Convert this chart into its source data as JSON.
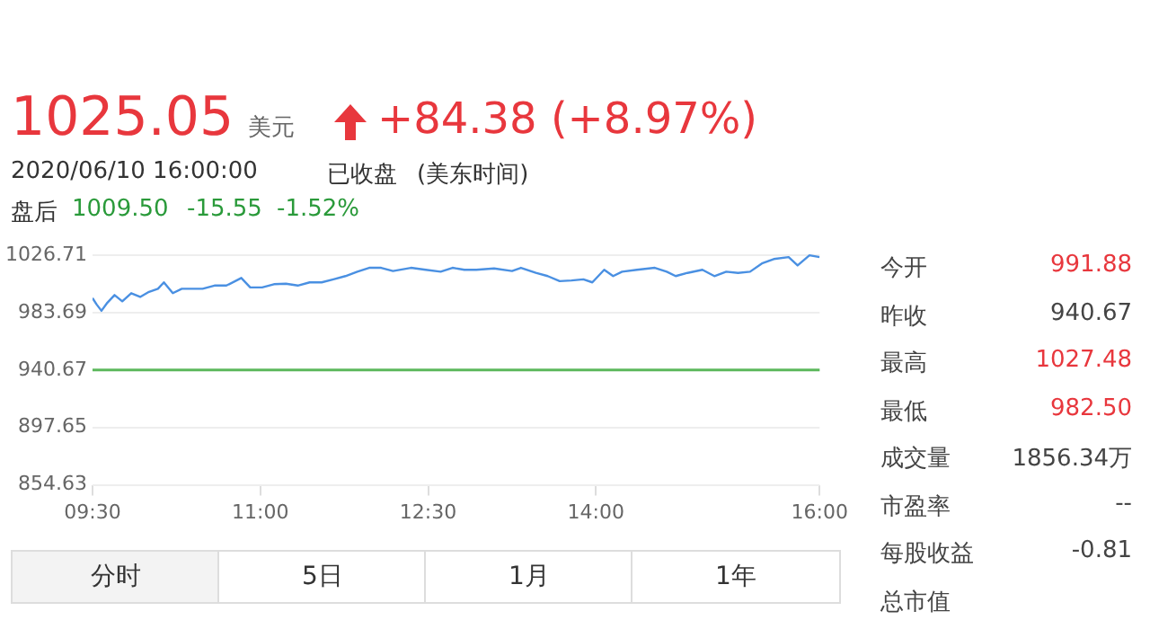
{
  "chart_data": {
    "type": "line",
    "x": [
      9.5,
      9.537,
      9.58,
      9.633,
      9.697,
      9.766,
      9.846,
      9.926,
      10.005,
      10.085,
      10.138,
      10.218,
      10.298,
      10.378,
      10.484,
      10.59,
      10.697,
      10.83,
      10.91,
      11.016,
      11.122,
      11.229,
      11.335,
      11.441,
      11.548,
      11.654,
      11.761,
      11.867,
      11.973,
      12.08,
      12.186,
      12.346,
      12.479,
      12.612,
      12.718,
      12.824,
      12.931,
      13.09,
      13.25,
      13.33,
      13.463,
      13.569,
      13.676,
      13.782,
      13.888,
      13.968,
      14.074,
      14.154,
      14.234,
      14.367,
      14.527,
      14.633,
      14.713,
      14.819,
      14.952,
      15.059,
      15.165,
      15.271,
      15.378,
      15.484,
      15.59,
      15.723,
      15.803,
      15.909,
      16.0
    ],
    "series": [
      {
        "color": "#4a90e2",
        "values": [
          994.6,
          989.8,
          985.1,
          991.2,
          996.9,
          992.2,
          998.3,
          995.5,
          999.3,
          1001.6,
          1006.4,
          998.3,
          1001.6,
          1001.6,
          1001.6,
          1004.0,
          1004.0,
          1009.7,
          1002.6,
          1002.6,
          1005.0,
          1005.4,
          1004.0,
          1006.4,
          1006.4,
          1008.7,
          1011.1,
          1014.4,
          1017.3,
          1017.3,
          1014.9,
          1017.3,
          1015.8,
          1014.4,
          1017.3,
          1015.8,
          1015.8,
          1016.8,
          1014.9,
          1017.3,
          1013.5,
          1011.1,
          1007.3,
          1007.8,
          1008.7,
          1006.4,
          1015.8,
          1011.1,
          1014.4,
          1015.8,
          1017.3,
          1014.4,
          1011.1,
          1013.5,
          1015.8,
          1011.1,
          1014.4,
          1013.5,
          1014.4,
          1020.6,
          1023.9,
          1025.3,
          1019.1,
          1026.7,
          1025.3
        ]
      }
    ],
    "ylim": [
      854.63,
      1030
    ],
    "yticks": [
      854.63,
      897.65,
      940.67,
      983.69,
      1026.71
    ],
    "xlim": [
      9.5,
      16.0
    ],
    "xticks": [
      {
        "value": 9.5,
        "label": "09:30"
      },
      {
        "value": 11,
        "label": "11:00"
      },
      {
        "value": 12.5,
        "label": "12:30"
      },
      {
        "value": 14,
        "label": "14:00"
      },
      {
        "value": 16,
        "label": "16:00"
      }
    ],
    "grid": "y",
    "marker": "none",
    "line_style": "solid",
    "ref_lines": [
      {
        "axis": "y",
        "value": 940.67,
        "color": "#5cb85c"
      }
    ],
    "annotations": [
      "1025.05",
      "美元",
      "+84.38 (+8.97%)",
      "2020/06/10 16:00:00",
      "已收盘",
      "(美东时间)",
      "盘后",
      "1009.50",
      "-15.55",
      "-1.52%",
      "今开",
      "991.88",
      "昨收",
      "940.67",
      "最高",
      "1027.48",
      "最低",
      "982.50",
      "成交量",
      "1856.34万",
      "市盈率",
      "--",
      "每股收益",
      "-0.81",
      "总市值",
      "分时",
      "5日",
      "1月",
      "1年"
    ]
  }
}
